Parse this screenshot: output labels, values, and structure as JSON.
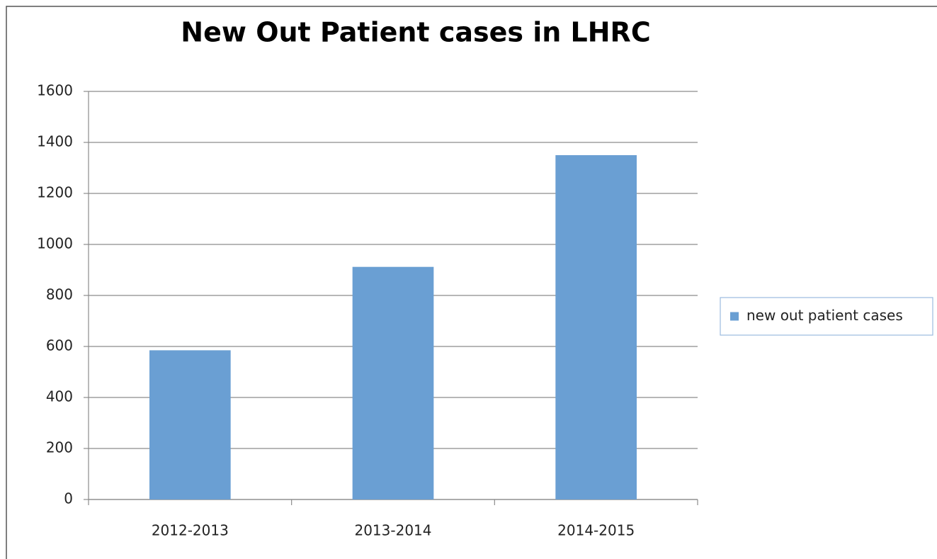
{
  "chart_data": {
    "type": "bar",
    "title": "New Out Patient cases in LHRC",
    "categories": [
      "2012-2013",
      "2013-2014",
      "2014-2015"
    ],
    "series": [
      {
        "name": "new out patient cases",
        "color": "#6a9fd3",
        "values": [
          585,
          912,
          1350
        ]
      }
    ],
    "ylim": [
      0,
      1600
    ],
    "yticks": [
      0,
      200,
      400,
      600,
      800,
      1000,
      1200,
      1400,
      1600
    ],
    "grid": true,
    "legend": "right"
  }
}
